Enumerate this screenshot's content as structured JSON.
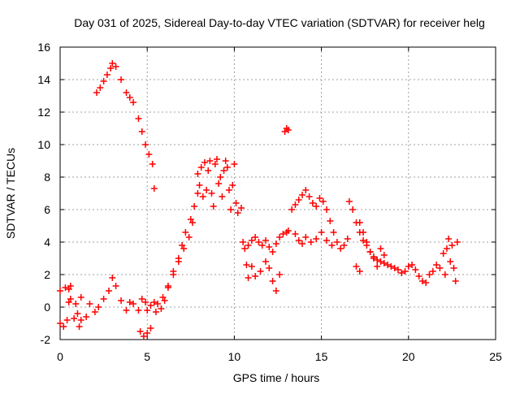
{
  "chart_data": {
    "type": "scatter",
    "title": "Day 031 of 2025, Sidereal Day-to-day VTEC variation (SDTVAR) for receiver helg",
    "xlabel": "GPS time / hours",
    "ylabel": "SDTVAR / TECUs",
    "xlim": [
      0,
      25
    ],
    "ylim": [
      -2,
      16
    ],
    "xticks": [
      0,
      5,
      10,
      15,
      20,
      25
    ],
    "yticks": [
      -2,
      0,
      2,
      4,
      6,
      8,
      10,
      12,
      14,
      16
    ],
    "grid": true,
    "marker": "plus",
    "color": "#ff0000",
    "series": [
      {
        "name": "SDTVAR",
        "x": [
          0.0,
          0.2,
          0.4,
          0.5,
          0.5,
          0.6,
          0.8,
          1.0,
          1.1,
          1.2,
          1.5,
          1.7,
          2.0,
          2.2,
          2.5,
          2.8,
          3.0,
          3.2,
          3.5,
          3.8,
          4.0,
          4.2,
          4.5,
          4.7,
          4.9,
          5.0,
          5.2,
          5.4,
          0.0,
          0.3,
          0.6,
          0.9,
          1.2,
          2.1,
          2.3,
          2.5,
          2.7,
          2.9,
          3.0,
          3.2,
          3.5,
          3.8,
          4.0,
          4.2,
          4.5,
          4.7,
          4.9,
          5.1,
          5.3,
          5.4,
          4.6,
          4.8,
          5.0,
          5.2,
          5.5,
          5.8,
          6.0,
          6.2,
          6.5,
          6.8,
          7.0,
          7.2,
          7.5,
          7.7,
          7.9,
          5.6,
          5.9,
          6.2,
          6.5,
          6.8,
          7.1,
          7.4,
          7.6,
          7.9,
          8.0,
          8.1,
          8.2,
          8.3,
          8.4,
          8.5,
          8.6,
          8.7,
          8.8,
          8.9,
          9.0,
          9.1,
          9.2,
          9.3,
          9.4,
          9.5,
          9.6,
          9.7,
          9.8,
          9.9,
          10.0,
          10.1,
          10.2,
          10.4,
          10.5,
          10.6,
          10.7,
          10.8,
          11.0,
          11.2,
          11.4,
          11.6,
          11.8,
          12.0,
          12.2,
          12.4,
          12.6,
          12.8,
          13.0,
          13.1,
          10.8,
          11.0,
          11.2,
          11.5,
          11.8,
          12.0,
          12.2,
          12.4,
          12.6,
          12.9,
          13.0,
          13.1,
          13.3,
          13.5,
          13.7,
          13.9,
          14.1,
          14.3,
          14.5,
          14.7,
          14.9,
          15.1,
          15.3,
          15.5,
          15.7,
          15.9,
          16.1,
          16.3,
          16.5,
          13.5,
          13.7,
          13.9,
          14.1,
          14.4,
          14.7,
          15.0,
          15.3,
          15.6,
          16.6,
          16.8,
          17.0,
          17.2,
          17.4,
          17.6,
          17.8,
          18.0,
          18.2,
          18.4,
          18.6,
          18.8,
          19.0,
          19.2,
          19.4,
          19.6,
          19.8,
          20.0,
          20.2,
          20.4,
          20.6,
          20.8,
          21.0,
          21.2,
          21.4,
          21.6,
          17.2,
          17.4,
          17.6,
          17.8,
          18.0,
          18.2,
          18.4,
          18.6,
          17.0,
          17.2,
          21.8,
          22.0,
          22.1,
          22.2,
          22.3,
          22.4,
          22.5,
          22.6,
          22.7,
          22.8
        ],
        "y": [
          -1.0,
          -1.2,
          -0.8,
          0.3,
          1.1,
          1.3,
          -0.7,
          -0.4,
          -1.2,
          -0.8,
          -0.6,
          0.2,
          -0.3,
          0.0,
          0.5,
          1.0,
          1.8,
          1.3,
          0.4,
          -0.2,
          0.3,
          0.2,
          -0.2,
          0.5,
          0.3,
          -0.2,
          0.1,
          0.3,
          1.0,
          1.2,
          0.5,
          0.2,
          0.6,
          13.2,
          13.5,
          13.9,
          14.3,
          14.7,
          15.0,
          14.8,
          14.0,
          13.2,
          12.9,
          12.6,
          11.6,
          10.8,
          10.0,
          9.4,
          8.8,
          7.3,
          -1.5,
          -1.8,
          -1.6,
          -1.3,
          -0.3,
          -0.1,
          0.4,
          1.2,
          2.2,
          3.0,
          3.8,
          4.6,
          5.4,
          6.2,
          7.0,
          0.2,
          0.6,
          1.3,
          2.0,
          2.8,
          3.6,
          4.3,
          5.2,
          8.2,
          7.5,
          8.6,
          6.8,
          8.9,
          7.2,
          8.4,
          9.0,
          7.0,
          6.2,
          8.8,
          9.1,
          7.6,
          8.0,
          6.8,
          8.4,
          9.0,
          8.6,
          7.2,
          6.0,
          7.5,
          8.8,
          6.4,
          5.8,
          6.1,
          4.0,
          3.6,
          2.6,
          3.8,
          4.1,
          4.3,
          4.0,
          3.8,
          4.1,
          3.7,
          3.4,
          3.9,
          4.3,
          4.5,
          4.6,
          4.7,
          1.8,
          2.5,
          1.9,
          2.2,
          2.8,
          2.4,
          1.6,
          1.0,
          2.0,
          10.8,
          11.0,
          10.9,
          6.0,
          6.3,
          6.6,
          6.9,
          7.2,
          6.8,
          6.4,
          6.2,
          6.7,
          6.5,
          6.0,
          5.3,
          4.6,
          4.0,
          3.6,
          3.8,
          4.2,
          4.5,
          4.1,
          3.9,
          4.3,
          4.0,
          4.2,
          4.6,
          4.1,
          3.8,
          6.5,
          6.0,
          5.2,
          4.6,
          4.1,
          3.8,
          3.4,
          3.1,
          2.9,
          2.8,
          2.7,
          2.6,
          2.5,
          2.4,
          2.3,
          2.1,
          2.2,
          2.5,
          2.6,
          2.3,
          1.9,
          1.6,
          1.5,
          2.0,
          2.2,
          2.6,
          5.2,
          4.6,
          4.0,
          3.4,
          3.0,
          2.5,
          3.6,
          3.2,
          2.5,
          2.2,
          2.4,
          3.3,
          2.0,
          3.6,
          4.2,
          2.8,
          3.8,
          2.4,
          1.6,
          4.0
        ]
      }
    ]
  }
}
